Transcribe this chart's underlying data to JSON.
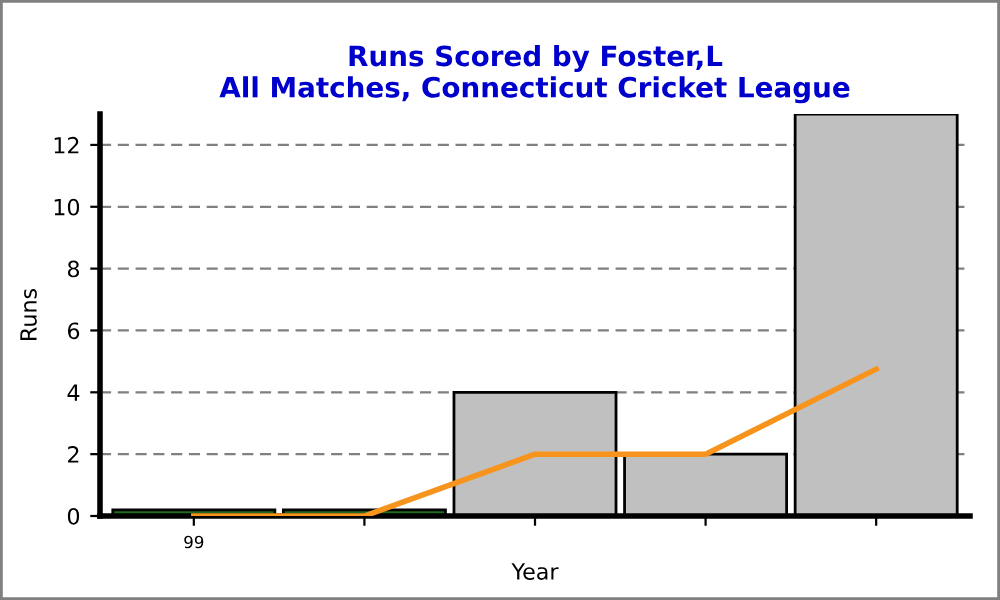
{
  "chart_data": {
    "type": "bar",
    "title": "Runs Scored by Foster,L\nAll Matches, Connecticut Cricket League",
    "xlabel": "Year",
    "ylabel": "Runs",
    "categories": [
      "99",
      null,
      null,
      null,
      null
    ],
    "series": [
      {
        "colors": [
          "#1f6b1f",
          "#1f6b1f",
          "#c0c0c0",
          "#c0c0c0",
          "#c0c0c0"
        ],
        "values": [
          0.2,
          0.2,
          4,
          2,
          13
        ]
      },
      {
        "type": "line",
        "color": "#f7941d",
        "values": [
          0,
          0,
          2,
          2,
          4.75
        ]
      }
    ],
    "ylim": [
      0,
      13
    ],
    "yticks": [
      0,
      2,
      4,
      6,
      8,
      10,
      12
    ],
    "grid": "y"
  }
}
